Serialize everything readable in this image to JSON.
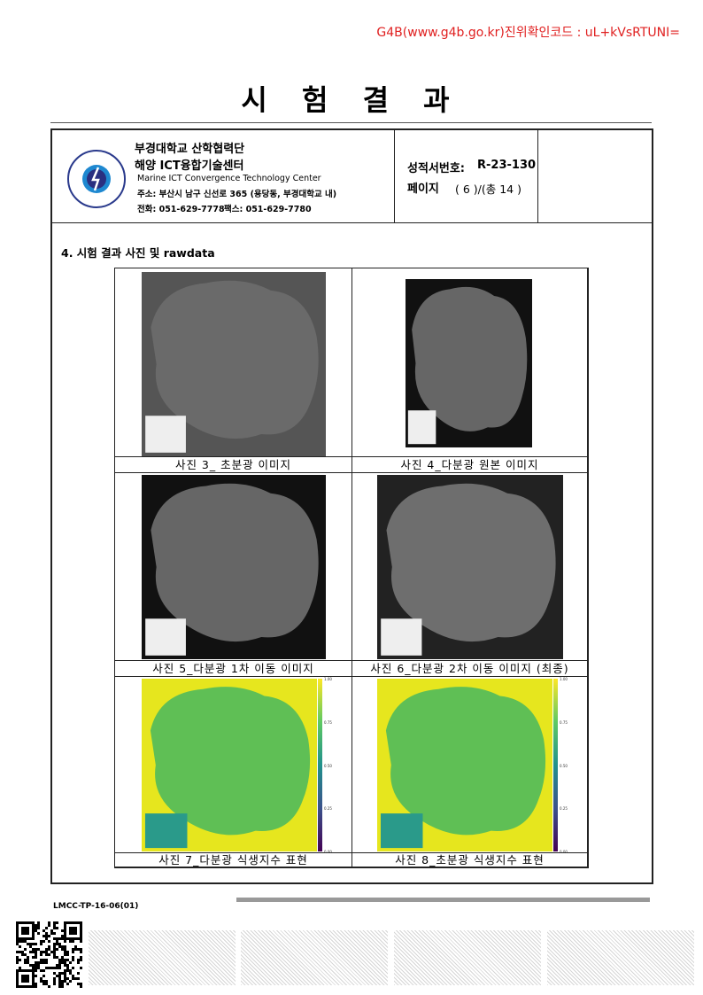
{
  "verification": "G4B(www.g4b.go.kr)진위확인코드 : uL+kVsRTUNI=",
  "title": "시 험 결 과",
  "header": {
    "org_line1": "부경대학교 산학협력단",
    "org_line2": "해양 ICT융합기술센터",
    "org_en": "Marine ICT Convergence Technology Center",
    "address": "주소: 부산시 남구 신선로 365 (용당동, 부경대학교 내)",
    "phone": "전화: 051-629-7778",
    "fax": "팩스:  051-629-7780",
    "report_no_label": "성적서번호:",
    "report_no": "R-23-130",
    "page_label": "페이지",
    "page_value": "( 6 )/(총 14 )"
  },
  "section_title": "4. 시험 결과 사진 및 rawdata",
  "photos": [
    {
      "caption": "사진 3_ 초분광 이미지"
    },
    {
      "caption": "사진 4_다분광 원본 이미지"
    },
    {
      "caption": "사진 5_다분광 1차 이동 이미지"
    },
    {
      "caption": "사진 6_다분광 2차 이동 이미지 (최종)"
    },
    {
      "caption": "사진 7_다분광 식생지수 표현"
    },
    {
      "caption": "사진 8_초분광 식생지수 표현"
    }
  ],
  "colorbar_ticks": [
    "1.00",
    "0.75",
    "0.50",
    "0.25",
    "0.00"
  ],
  "footer": {
    "form_code": "LMCC-TP-16-06(01)"
  }
}
